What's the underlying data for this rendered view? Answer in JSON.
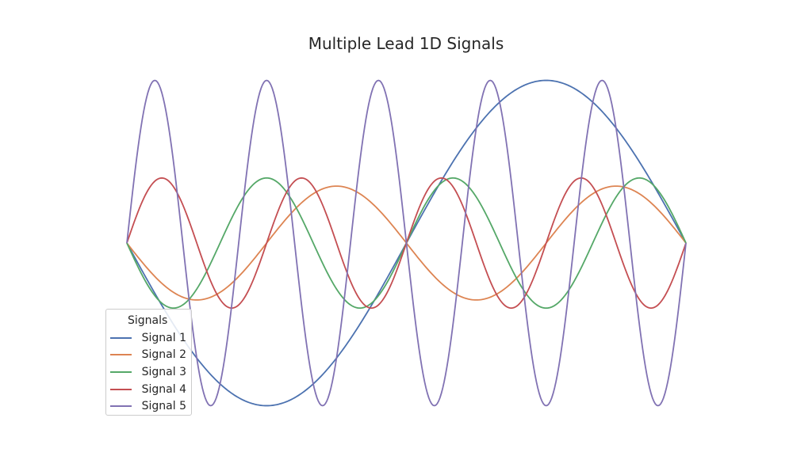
{
  "chart_data": {
    "type": "line",
    "title": "Multiple Lead 1D Signals",
    "xlabel": "",
    "ylabel": "",
    "grid": false,
    "axes_visible": false,
    "xlim": [
      0,
      2
    ],
    "ylim": [
      -1.1,
      1.1
    ],
    "legend": {
      "title": "Signals",
      "placement": "lower-left"
    },
    "x_samples": 400,
    "series": [
      {
        "name": "Signal 1",
        "color": "#4c72b0",
        "amplitude": 1.0,
        "frequency": 0.5,
        "phase": 3.1416
      },
      {
        "name": "Signal 2",
        "color": "#dd8452",
        "amplitude": 0.35,
        "frequency": 1.0,
        "phase": 3.1416
      },
      {
        "name": "Signal 3",
        "color": "#55a868",
        "amplitude": 0.4,
        "frequency": 1.5,
        "phase": 3.1416
      },
      {
        "name": "Signal 4",
        "color": "#c44e52",
        "amplitude": 0.4,
        "frequency": 2.0,
        "phase": 0
      },
      {
        "name": "Signal 5",
        "color": "#8172b3",
        "amplitude": 1.0,
        "frequency": 2.5,
        "phase": 0
      }
    ]
  }
}
